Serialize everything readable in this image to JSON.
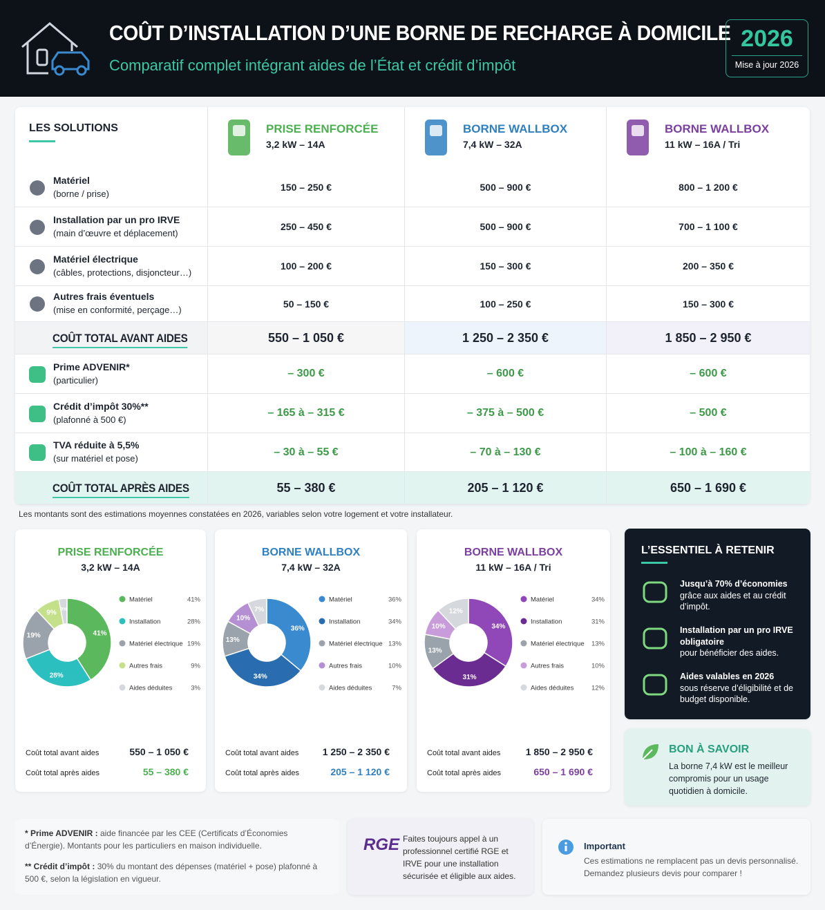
{
  "header": {
    "title": "COÛT D’INSTALLATION D’UNE BORNE DE RECHARGE À DOMICILE",
    "subtitle": "Comparatif complet intégrant aides de l’État et crédit d’impôt",
    "year": "2026",
    "update": "Mise à jour 2026"
  },
  "table": {
    "corner": "LES SOLUTIONS",
    "columns": [
      {
        "name": "PRISE RENFORCÉE",
        "spec": "3,2 kW – 14A",
        "color": "#4caf50"
      },
      {
        "name": "BORNE WALLBOX",
        "spec": "7,4 kW – 32A",
        "color": "#2f80c1"
      },
      {
        "name": "BORNE WALLBOX",
        "spec": "11 kW – 16A / Tri",
        "color": "#7b3fa0"
      }
    ],
    "cost_rows": [
      {
        "label": "Matériel",
        "sub": "(borne / prise)",
        "cells": [
          "150 – 250 €",
          "500 – 900 €",
          "800 – 1 200 €"
        ]
      },
      {
        "label": "Installation par un pro IRVE",
        "sub": "(main d’œuvre et déplacement)",
        "cells": [
          "250 – 450 €",
          "500 – 900 €",
          "700 – 1 100 €"
        ]
      },
      {
        "label": "Matériel électrique",
        "sub": "(câbles, protections, disjoncteur…)",
        "cells": [
          "100 – 200 €",
          "150 – 300 €",
          "200 – 350 €"
        ]
      },
      {
        "label": "Autres frais éventuels",
        "sub": "(mise en conformité, perçage…)",
        "cells": [
          "50 – 150 €",
          "100 – 250 €",
          "150 – 300 €"
        ]
      }
    ],
    "total_before": {
      "label": "COÛT TOTAL AVANT AIDES",
      "cells": [
        "550 – 1 050 €",
        "1 250 – 2 350 €",
        "1 850 – 2 950 €"
      ]
    },
    "aid_rows": [
      {
        "label": "Prime ADVENIR*",
        "sub": "(particulier)",
        "cells": [
          "– 300 €",
          "– 600 €",
          "– 600 €"
        ]
      },
      {
        "label": "Crédit d’impôt 30%**",
        "sub": "(plafonné à 500 €)",
        "cells": [
          "– 165 à – 315 €",
          "– 375 à – 500 €",
          "– 500 €"
        ]
      },
      {
        "label": "TVA réduite à 5,5%",
        "sub": "(sur matériel et pose)",
        "cells": [
          "– 30 à – 55 €",
          "– 70 à – 130 €",
          "– 100 à – 160 €"
        ]
      }
    ],
    "total_after": {
      "label": "COÛT TOTAL APRÈS AIDES",
      "cells": [
        "55 – 380 €",
        "205 – 1 120 €",
        "650 – 1 690 €"
      ]
    }
  },
  "note": "Les montants sont des estimations moyennes constatées en 2026, variables selon votre logement et votre installateur.",
  "chart_data": [
    {
      "type": "pie",
      "title": "PRISE RENFORCÉE",
      "subtitle": "3,2 kW – 14A",
      "title_color": "#4caf50",
      "categories": [
        "Matériel",
        "Installation",
        "Matériel électrique",
        "Autres frais",
        "Aides déduites"
      ],
      "values": [
        41,
        28,
        19,
        9,
        3
      ],
      "value_labels": [
        "41%",
        "28%",
        "19%",
        "9%",
        "3%"
      ],
      "colors": [
        "#5cb85c",
        "#2bbfbf",
        "#9aa3ab",
        "#c5e08a",
        "#d5d8dc"
      ],
      "summary": [
        {
          "label": "Coût total avant aides",
          "value": "550 – 1 050 €"
        },
        {
          "label": "Coût total après aides",
          "value": "55 – 380 €"
        }
      ]
    },
    {
      "type": "pie",
      "title": "BORNE WALLBOX",
      "subtitle": "7,4 kW – 32A",
      "title_color": "#2f80c1",
      "categories": [
        "Matériel",
        "Installation",
        "Matériel électrique",
        "Autres frais",
        "Aides déduites"
      ],
      "values": [
        36,
        34,
        13,
        10,
        7
      ],
      "value_labels": [
        "36%",
        "34%",
        "13%",
        "10%",
        "7%"
      ],
      "colors": [
        "#3a8ad0",
        "#2a6cb0",
        "#9aa3ab",
        "#b48fd2",
        "#d5d8dc"
      ],
      "summary": [
        {
          "label": "Coût total avant aides",
          "value": "1 250 – 2 350 €"
        },
        {
          "label": "Coût total après aides",
          "value": "205 – 1 120 €"
        }
      ]
    },
    {
      "type": "pie",
      "title": "BORNE WALLBOX",
      "subtitle": "11 kW – 16A / Tri",
      "title_color": "#7b3fa0",
      "categories": [
        "Matériel",
        "Installation",
        "Matériel électrique",
        "Autres frais",
        "Aides déduites"
      ],
      "values": [
        34,
        31,
        13,
        10,
        12
      ],
      "value_labels": [
        "34%",
        "31%",
        "13%",
        "10%",
        "12%"
      ],
      "colors": [
        "#9047b8",
        "#6a2c91",
        "#9aa3ab",
        "#c89bdb",
        "#d5d8dc"
      ],
      "summary": [
        {
          "label": "Coût total avant aides",
          "value": "1 850 – 2 950 €"
        },
        {
          "label": "Coût total après aides",
          "value": "650 – 1 690 €"
        }
      ]
    }
  ],
  "essentials": {
    "title": "L’ESSENTIEL À RETENIR",
    "items": [
      {
        "bold": "Jusqu’à 70% d’économies",
        "text": "grâce aux aides et au crédit d’impôt."
      },
      {
        "bold": "Installation par un pro IRVE obligatoire",
        "text": "pour bénéficier des aides."
      },
      {
        "bold": "Aides valables en 2026",
        "text": "sous réserve d’éligibilité et de budget disponible."
      }
    ]
  },
  "tip": {
    "title": "BON À SAVOIR",
    "text": "La borne 7,4 kW est le meilleur compromis pour un usage quotidien à domicile."
  },
  "footnotes": [
    {
      "bold": "* Prime ADVENIR :",
      "text": "aide financée par les CEE (Certificats d’Économies d’Énergie). Montants pour les particuliers en maison individuelle."
    },
    {
      "bold": "** Crédit d’impôt :",
      "text": "30% du montant des dépenses (matériel + pose) plafonné à 500 €, selon la législation en vigueur."
    }
  ],
  "rge": {
    "logo": "RGE",
    "text": "Faites toujours appel à un professionnel certifié RGE et IRVE pour une installation sécurisée et éligible aux aides."
  },
  "important": {
    "title": "Important",
    "text": "Ces estimations ne remplacent pas un devis personnalisé. Demandez plusieurs devis pour comparer !"
  }
}
